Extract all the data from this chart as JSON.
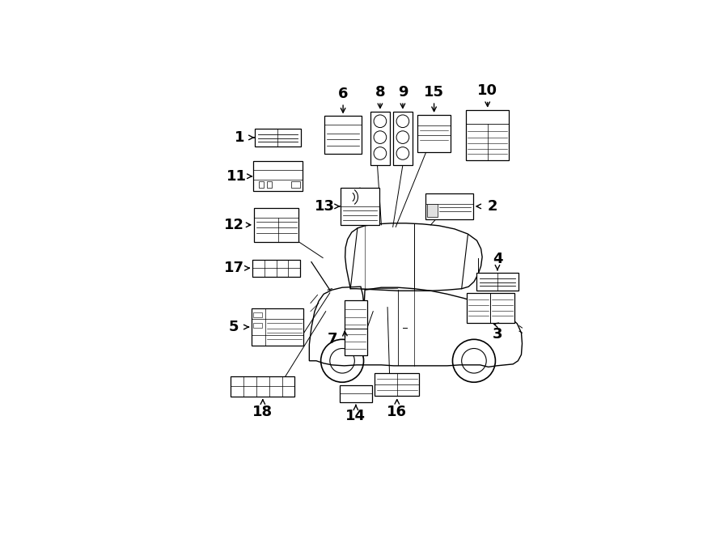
{
  "bg_color": "#ffffff",
  "labels": [
    {
      "num": "1",
      "nx": 0.175,
      "ny": 0.178,
      "arrow": "right",
      "bx": 0.268,
      "by": 0.178,
      "bw": 0.112,
      "bh": 0.042,
      "type": "barcode_wide"
    },
    {
      "num": "11",
      "nx": 0.168,
      "ny": 0.272,
      "arrow": "right",
      "bx": 0.268,
      "by": 0.272,
      "bw": 0.12,
      "bh": 0.072,
      "type": "toyota_catalyst"
    },
    {
      "num": "12",
      "nx": 0.162,
      "ny": 0.39,
      "arrow": "right",
      "bx": 0.265,
      "by": 0.39,
      "bw": 0.108,
      "bh": 0.082,
      "type": "diagram_label"
    },
    {
      "num": "17",
      "nx": 0.162,
      "ny": 0.495,
      "arrow": "right",
      "bx": 0.265,
      "by": 0.495,
      "bw": 0.115,
      "bh": 0.042,
      "type": "grid_wide"
    },
    {
      "num": "5",
      "nx": 0.162,
      "ny": 0.638,
      "arrow": "right",
      "bx": 0.268,
      "by": 0.638,
      "bw": 0.125,
      "bh": 0.09,
      "type": "caution_label"
    },
    {
      "num": "18",
      "nx": 0.232,
      "ny": 0.845,
      "arrow": "up",
      "bx": 0.232,
      "by": 0.782,
      "bw": 0.155,
      "bh": 0.048,
      "type": "wide_bar"
    },
    {
      "num": "6",
      "nx": 0.427,
      "ny": 0.072,
      "arrow": "down",
      "bx": 0.427,
      "by": 0.172,
      "bw": 0.09,
      "bh": 0.092,
      "type": "small_doc"
    },
    {
      "num": "8",
      "nx": 0.517,
      "ny": 0.068,
      "arrow": "down",
      "bx": 0.517,
      "by": 0.18,
      "bw": 0.048,
      "bh": 0.13,
      "type": "tall_shapes"
    },
    {
      "num": "9",
      "nx": 0.572,
      "ny": 0.068,
      "arrow": "down",
      "bx": 0.572,
      "by": 0.18,
      "bw": 0.048,
      "bh": 0.13,
      "type": "tall_shapes2"
    },
    {
      "num": "15",
      "nx": 0.648,
      "ny": 0.068,
      "arrow": "down",
      "bx": 0.648,
      "by": 0.168,
      "bw": 0.08,
      "bh": 0.09,
      "type": "medium_doc"
    },
    {
      "num": "10",
      "nx": 0.778,
      "ny": 0.065,
      "arrow": "down",
      "bx": 0.778,
      "by": 0.172,
      "bw": 0.105,
      "bh": 0.122,
      "type": "large_doc"
    },
    {
      "num": "13",
      "nx": 0.383,
      "ny": 0.345,
      "arrow": "right",
      "bx": 0.468,
      "by": 0.345,
      "bw": 0.095,
      "bh": 0.09,
      "type": "alarm_label"
    },
    {
      "num": "2",
      "nx": 0.79,
      "ny": 0.345,
      "arrow": "left",
      "bx": 0.685,
      "by": 0.345,
      "bw": 0.115,
      "bh": 0.062,
      "type": "small_info"
    },
    {
      "num": "7",
      "nx": 0.402,
      "ny": 0.668,
      "arrow": "right",
      "bx": 0.458,
      "by": 0.64,
      "bw": 0.055,
      "bh": 0.132,
      "type": "tall_stacked"
    },
    {
      "num": "14",
      "nx": 0.458,
      "ny": 0.855,
      "arrow": "up",
      "bx": 0.458,
      "by": 0.8,
      "bw": 0.08,
      "bh": 0.04,
      "type": "small_bar"
    },
    {
      "num": "16",
      "nx": 0.558,
      "ny": 0.845,
      "arrow": "up",
      "bx": 0.558,
      "by": 0.778,
      "bw": 0.108,
      "bh": 0.055,
      "type": "grid_label"
    },
    {
      "num": "4",
      "nx": 0.802,
      "ny": 0.472,
      "arrow": "down",
      "bx": 0.802,
      "by": 0.528,
      "bw": 0.102,
      "bh": 0.042,
      "type": "barcode_wide"
    },
    {
      "num": "3",
      "nx": 0.802,
      "ny": 0.655,
      "arrow": "up",
      "bx": 0.785,
      "by": 0.592,
      "bw": 0.115,
      "bh": 0.072,
      "type": "two_panel"
    }
  ],
  "callout_lines": [
    [
      0.468,
      0.3,
      0.5,
      0.39
    ],
    [
      0.51,
      0.24,
      0.52,
      0.39
    ],
    [
      0.572,
      0.245,
      0.548,
      0.395
    ],
    [
      0.63,
      0.21,
      0.555,
      0.395
    ],
    [
      0.685,
      0.34,
      0.64,
      0.39
    ],
    [
      0.462,
      0.706,
      0.5,
      0.6
    ],
    [
      0.54,
      0.756,
      0.535,
      0.59
    ],
    [
      0.295,
      0.415,
      0.378,
      0.47
    ],
    [
      0.33,
      0.655,
      0.395,
      0.555
    ],
    [
      0.27,
      0.785,
      0.385,
      0.6
    ]
  ]
}
